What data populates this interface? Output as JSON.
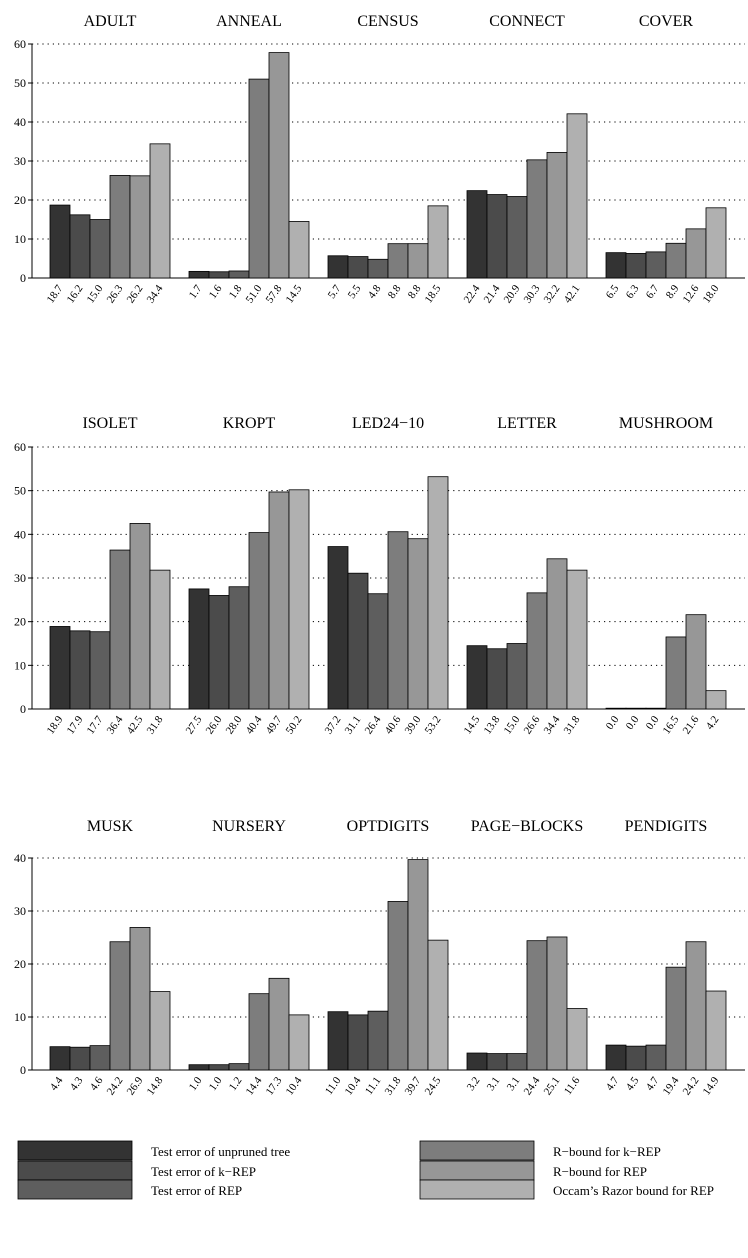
{
  "chart_data": {
    "type": "bar",
    "y_unit": "Test error / bound",
    "grid": "dotted horizontal",
    "legend_position": "bottom",
    "series": [
      {
        "name": "Test error of unpruned tree",
        "color": "#333333"
      },
      {
        "name": "Test error of k−REP",
        "color": "#4b4b4b"
      },
      {
        "name": "Test error of REP",
        "color": "#5e5e5e"
      },
      {
        "name": "R−bound for k−REP",
        "color": "#7d7d7d"
      },
      {
        "name": "R−bound for REP",
        "color": "#979797"
      },
      {
        "name": "Occam’s Razor bound for REP",
        "color": "#b0b0b0"
      }
    ],
    "rows": [
      {
        "ylim": [
          0,
          60
        ],
        "yticks": [
          "0",
          "10",
          "20",
          "30",
          "40",
          "50",
          "60"
        ],
        "datasets": [
          {
            "name": "ADULT",
            "values": [
              18.7,
              16.2,
              15.0,
              26.3,
              26.2,
              34.4
            ],
            "labels": [
              "18.7",
              "16.2",
              "15.0",
              "26.3",
              "26.2",
              "34.4"
            ]
          },
          {
            "name": "ANNEAL",
            "values": [
              1.7,
              1.6,
              1.8,
              51.0,
              57.8,
              14.5
            ],
            "labels": [
              "1.7",
              "1.6",
              "1.8",
              "51.0",
              "57.8",
              "14.5"
            ]
          },
          {
            "name": "CENSUS",
            "values": [
              5.7,
              5.5,
              4.8,
              8.8,
              8.8,
              18.5
            ],
            "labels": [
              "5.7",
              "5.5",
              "4.8",
              "8.8",
              "8.8",
              "18.5"
            ]
          },
          {
            "name": "CONNECT",
            "values": [
              22.4,
              21.4,
              20.9,
              30.3,
              32.2,
              42.1
            ],
            "labels": [
              "22.4",
              "21.4",
              "20.9",
              "30.3",
              "32.2",
              "42.1"
            ]
          },
          {
            "name": "COVER",
            "values": [
              6.5,
              6.3,
              6.7,
              8.9,
              12.6,
              18.0
            ],
            "labels": [
              "6.5",
              "6.3",
              "6.7",
              "8.9",
              "12.6",
              "18.0"
            ]
          }
        ]
      },
      {
        "ylim": [
          0,
          60
        ],
        "yticks": [
          "0",
          "10",
          "20",
          "30",
          "40",
          "50",
          "60"
        ],
        "datasets": [
          {
            "name": "ISOLET",
            "values": [
              18.9,
              17.9,
              17.7,
              36.4,
              42.5,
              31.8
            ],
            "labels": [
              "18.9",
              "17.9",
              "17.7",
              "36.4",
              "42.5",
              "31.8"
            ]
          },
          {
            "name": "KROPT",
            "values": [
              27.5,
              26.0,
              28.0,
              40.4,
              49.7,
              50.2
            ],
            "labels": [
              "27.5",
              "26.0",
              "28.0",
              "40.4",
              "49.7",
              "50.2"
            ]
          },
          {
            "name": "LED24−10",
            "values": [
              37.2,
              31.1,
              26.4,
              40.6,
              39.0,
              53.2
            ],
            "labels": [
              "37.2",
              "31.1",
              "26.4",
              "40.6",
              "39.0",
              "53.2"
            ]
          },
          {
            "name": "LETTER",
            "values": [
              14.5,
              13.8,
              15.0,
              26.6,
              34.4,
              31.8
            ],
            "labels": [
              "14.5",
              "13.8",
              "15.0",
              "26.6",
              "34.4",
              "31.8"
            ]
          },
          {
            "name": "MUSHROOM",
            "values": [
              0.0,
              0.0,
              0.0,
              16.5,
              21.6,
              4.2
            ],
            "labels": [
              "0.0",
              "0.0",
              "0.0",
              "16.5",
              "21.6",
              "4.2"
            ]
          }
        ]
      },
      {
        "ylim": [
          0,
          40
        ],
        "yticks": [
          "0",
          "10",
          "20",
          "30",
          "40"
        ],
        "datasets": [
          {
            "name": "MUSK",
            "values": [
              4.4,
              4.3,
              4.6,
              24.2,
              26.9,
              14.8
            ],
            "labels": [
              "4.4",
              "4.3",
              "4.6",
              "24.2",
              "26.9",
              "14.8"
            ]
          },
          {
            "name": "NURSERY",
            "values": [
              1.0,
              1.0,
              1.2,
              14.4,
              17.3,
              10.4
            ],
            "labels": [
              "1.0",
              "1.0",
              "1.2",
              "14.4",
              "17.3",
              "10.4"
            ]
          },
          {
            "name": "OPTDIGITS",
            "values": [
              11.0,
              10.4,
              11.1,
              31.8,
              39.7,
              24.5
            ],
            "labels": [
              "11.0",
              "10.4",
              "11.1",
              "31.8",
              "39.7",
              "24.5"
            ]
          },
          {
            "name": "PAGE−BLOCKS",
            "values": [
              3.2,
              3.1,
              3.1,
              24.4,
              25.1,
              11.6
            ],
            "labels": [
              "3.2",
              "3.1",
              "3.1",
              "24.4",
              "25.1",
              "11.6"
            ]
          },
          {
            "name": "PENDIGITS",
            "values": [
              4.7,
              4.5,
              4.7,
              19.4,
              24.2,
              14.9
            ],
            "labels": [
              "4.7",
              "4.5",
              "4.7",
              "19.4",
              "24.2",
              "14.9"
            ]
          }
        ]
      }
    ]
  }
}
